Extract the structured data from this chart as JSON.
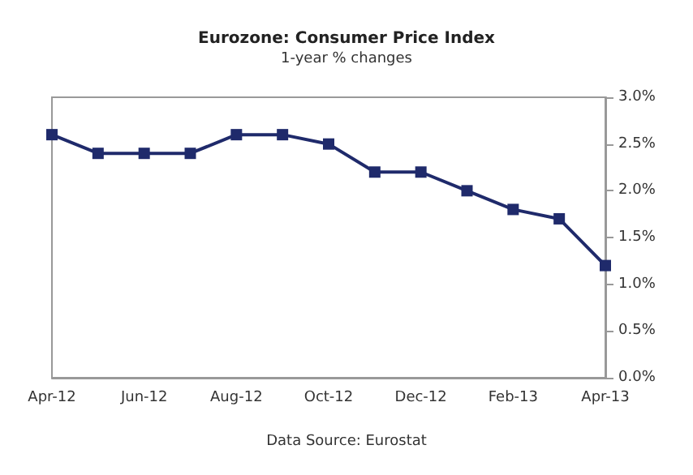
{
  "chart_data": {
    "type": "line",
    "title": "Eurozone: Consumer Price Index",
    "subtitle": "1-year % changes",
    "categories": [
      "Apr-12",
      null,
      "Jun-12",
      null,
      "Aug-12",
      null,
      "Oct-12",
      null,
      "Dec-12",
      null,
      "Feb-13",
      null,
      "Apr-13"
    ],
    "series": [
      {
        "color": "#1f2a6b",
        "values": [
          2.6,
          2.4,
          2.4,
          2.4,
          2.6,
          2.6,
          2.5,
          2.2,
          2.2,
          2.0,
          1.8,
          1.7,
          1.2
        ]
      }
    ],
    "ylim": [
      0,
      3
    ],
    "yticks": [
      {
        "value": 0,
        "label": "0.0%"
      },
      {
        "value": 0.5,
        "label": "0.5%"
      },
      {
        "value": 1,
        "label": "1.0%"
      },
      {
        "value": 1.5,
        "label": "1.5%"
      },
      {
        "value": 2,
        "label": "2.0%"
      },
      {
        "value": 2.5,
        "label": "2.5%"
      },
      {
        "value": 3,
        "label": "3.0%"
      }
    ],
    "annotations": [
      "Data Source: Eurostat"
    ],
    "marker": "square",
    "line_style": "solid",
    "grid": false
  }
}
